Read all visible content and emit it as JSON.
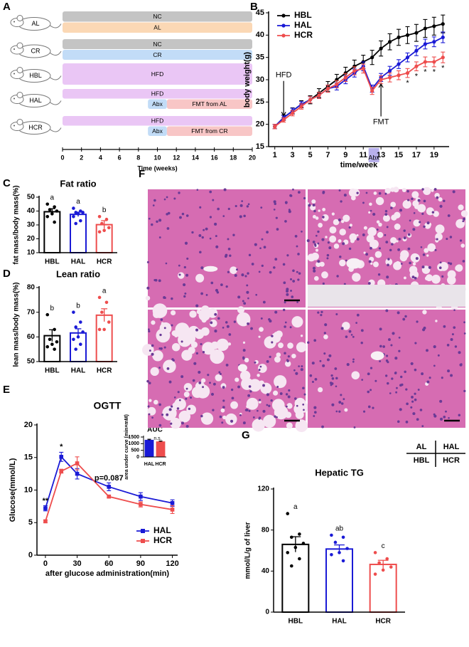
{
  "chart_data": [
    {
      "panel": "A",
      "type": "timeline",
      "xlabel": "Time (weeks)",
      "xlim": [
        0,
        20
      ],
      "xticks": [
        0,
        2,
        4,
        6,
        8,
        10,
        12,
        14,
        16,
        18,
        20
      ],
      "rows": [
        {
          "label": "AL",
          "lanes": [
            [
              {
                "label": "NC",
                "start": 0,
                "end": 20,
                "color": "#c4c4c4"
              }
            ],
            [
              {
                "label": "AL",
                "start": 0,
                "end": 20,
                "color": "#fbd8b5"
              }
            ]
          ]
        },
        {
          "label": "CR",
          "lanes": [
            [
              {
                "label": "NC",
                "start": 0,
                "end": 20,
                "color": "#c4c4c4"
              }
            ],
            [
              {
                "label": "CR",
                "start": 0,
                "end": 20,
                "color": "#c2dcf7"
              }
            ]
          ]
        },
        {
          "label": "HBL",
          "lanes": [
            [
              {
                "label": "HFD",
                "start": 0,
                "end": 20,
                "color": "#eac6f5"
              }
            ]
          ]
        },
        {
          "label": "HAL",
          "lanes": [
            [
              {
                "label": "HFD",
                "start": 0,
                "end": 20,
                "color": "#eac6f5"
              }
            ],
            [
              {
                "label": "Abx",
                "start": 9,
                "end": 11,
                "color": "#c2dcf7"
              },
              {
                "label": "FMT from AL",
                "start": 11,
                "end": 20,
                "color": "#f8c6c6"
              }
            ]
          ]
        },
        {
          "label": "HCR",
          "lanes": [
            [
              {
                "label": "HFD",
                "start": 0,
                "end": 20,
                "color": "#eac6f5"
              }
            ],
            [
              {
                "label": "Abx",
                "start": 9,
                "end": 11,
                "color": "#c2dcf7"
              },
              {
                "label": "FMT from CR",
                "start": 11,
                "end": 20,
                "color": "#f8c6c6"
              }
            ]
          ]
        }
      ]
    },
    {
      "panel": "B",
      "type": "line",
      "ylabel": "body weight(g)",
      "xlabel": "time/week",
      "marker": "circle",
      "x": [
        1,
        2,
        3,
        4,
        5,
        6,
        7,
        8,
        9,
        10,
        11,
        12,
        13,
        14,
        15,
        16,
        17,
        18,
        19,
        20
      ],
      "xlim": [
        0.3,
        20.7
      ],
      "ylim": [
        15,
        45
      ],
      "xticks": [
        1,
        3,
        5,
        7,
        9,
        11,
        13,
        15,
        17,
        19
      ],
      "yticks": [
        15,
        20,
        25,
        30,
        35,
        40,
        45
      ],
      "legend": "top-left",
      "series": [
        {
          "name": "HBL",
          "color": "#000000",
          "values": [
            19.5,
            21.5,
            23,
            24.5,
            25.5,
            27,
            28.5,
            30,
            31.5,
            33,
            34,
            35,
            37,
            38.5,
            39.5,
            40,
            40.5,
            41.5,
            42,
            42.5
          ],
          "errors": [
            0.5,
            0.6,
            0.7,
            0.8,
            0.9,
            1,
            1.1,
            1.2,
            1.3,
            1.4,
            1.5,
            1.6,
            1.7,
            1.8,
            1.8,
            1.9,
            1.9,
            2,
            2,
            2
          ]
        },
        {
          "name": "HAL",
          "color": "#1a1ad6",
          "values": [
            19.5,
            21.5,
            23,
            24.5,
            25.5,
            26.5,
            28,
            28.5,
            30,
            31.5,
            33,
            28,
            30.5,
            32,
            33.5,
            35,
            36.5,
            38,
            38.5,
            39.5
          ],
          "errors": [
            0.5,
            0.5,
            0.6,
            0.6,
            0.7,
            0.7,
            0.8,
            0.8,
            0.9,
            0.9,
            1,
            0.8,
            0.9,
            1,
            1,
            1,
            1.1,
            1.1,
            1.1,
            1.2
          ]
        },
        {
          "name": "HCR",
          "color": "#ee4d4d",
          "values": [
            19.5,
            21,
            22.5,
            24,
            25.5,
            26.5,
            28,
            29,
            30.5,
            32,
            32.5,
            27.5,
            30,
            30.5,
            31,
            31.5,
            33,
            34,
            34,
            35
          ],
          "errors": [
            0.5,
            0.5,
            0.6,
            0.6,
            0.7,
            0.7,
            0.8,
            0.8,
            0.9,
            0.9,
            1,
            0.8,
            0.9,
            1,
            1,
            1,
            1,
            1.1,
            1.1,
            1.2
          ]
        }
      ],
      "arrows": [
        {
          "text": "HFD",
          "x": 2,
          "y": 31
        },
        {
          "text": "FMT",
          "x": 13,
          "y": 20.5
        }
      ],
      "shade": {
        "label": "Abx",
        "start": 11.6,
        "end": 12.8
      },
      "significance": {
        "text": "*",
        "x": [
          16,
          17,
          18,
          19,
          20
        ]
      }
    },
    {
      "panel": "C",
      "type": "bar",
      "title": "Fat ratio",
      "ylabel": "fat mass/body mass(%)",
      "categories": [
        "HBL",
        "HAL",
        "HCR"
      ],
      "colors": [
        "#000000",
        "#1a1ad6",
        "#ee4d4d"
      ],
      "values": [
        39.5,
        37.6,
        30.2
      ],
      "errors": [
        2.2,
        1.6,
        2.9
      ],
      "letters": [
        "a",
        "a",
        "b"
      ],
      "points": [
        [
          45,
          43,
          41,
          40,
          38,
          36,
          32
        ],
        [
          42,
          40,
          39,
          39,
          38,
          36,
          33,
          31
        ],
        [
          36,
          34,
          31,
          28,
          26,
          25
        ]
      ],
      "ylim": [
        10,
        50
      ],
      "yticks": [
        10,
        20,
        30,
        40,
        50
      ]
    },
    {
      "panel": "D",
      "type": "bar",
      "title": "Lean ratio",
      "ylabel": "lean mass/body mass(%)",
      "categories": [
        "HBL",
        "HAL",
        "HCR"
      ],
      "colors": [
        "#000000",
        "#1a1ad6",
        "#ee4d4d"
      ],
      "values": [
        60.5,
        61.6,
        68.8
      ],
      "errors": [
        2.4,
        1.7,
        2.6
      ],
      "letters": [
        "b",
        "b",
        "a"
      ],
      "points": [
        [
          69,
          63,
          59,
          58,
          57,
          56,
          55
        ],
        [
          70,
          66,
          64,
          62,
          60,
          59,
          57,
          55
        ],
        [
          76,
          74,
          70,
          66,
          63,
          63
        ]
      ],
      "ylim": [
        50,
        80
      ],
      "yticks": [
        50,
        60,
        70,
        80
      ]
    },
    {
      "panel": "E",
      "type": "line",
      "title": "OGTT",
      "ylabel": "Glucose(mmol/L)",
      "xlabel": "after glucose administration(min)",
      "marker": "square",
      "x": [
        0,
        15,
        30,
        60,
        90,
        120
      ],
      "xlim": [
        -8,
        125
      ],
      "ylim": [
        0,
        20
      ],
      "xticks": [
        0,
        30,
        60,
        90,
        120
      ],
      "yticks": [
        0,
        5,
        10,
        15,
        20
      ],
      "legend": "bottom-right",
      "series": [
        {
          "name": "HAL",
          "color": "#1a1ad6",
          "values": [
            7.2,
            15.1,
            12.5,
            10.5,
            9.0,
            8.0
          ],
          "errors": [
            0.4,
            0.7,
            0.8,
            0.6,
            0.6,
            0.5
          ]
        },
        {
          "name": "HCR",
          "color": "#ee4d4d",
          "values": [
            5.2,
            12.9,
            14.1,
            9.0,
            7.8,
            7.0
          ],
          "errors": [
            0.2,
            0.3,
            1.0,
            0.2,
            0.4,
            0.6
          ]
        }
      ],
      "annotations": [
        {
          "text": "**",
          "x": 0,
          "y": 8.3
        },
        {
          "text": "*",
          "x": 15,
          "y": 16.6
        },
        {
          "text": "p=0.087",
          "x": 60,
          "y": 11.8
        }
      ]
    },
    {
      "type": "bar",
      "title": "AUC",
      "ylabel": "area under curve (min×mM)",
      "categories": [
        "HAL",
        "HCR"
      ],
      "colors": [
        "#1a1ad6",
        "#ee4d4d"
      ],
      "filled": true,
      "values": [
        1290,
        1170
      ],
      "errors": [
        40,
        25
      ],
      "note": "n.s.",
      "ylim": [
        0,
        1500
      ],
      "yticks": [
        0,
        500,
        1000,
        1500
      ]
    },
    {
      "panel": "F",
      "type": "image",
      "key": [
        [
          "AL",
          "HAL"
        ],
        [
          "HBL",
          "HCR"
        ]
      ]
    },
    {
      "panel": "G",
      "type": "bar",
      "title": "Hepatic TG",
      "ylabel": "mmol/L/g of liver",
      "categories": [
        "HBL",
        "HAL",
        "HCR"
      ],
      "colors": [
        "#000000",
        "#1a1ad6",
        "#ee4d4d"
      ],
      "values": [
        66,
        61.5,
        46.5
      ],
      "errors": [
        7.5,
        4,
        4
      ],
      "letters": [
        "a",
        "ab",
        "c"
      ],
      "points": [
        [
          96,
          76,
          73,
          67,
          63,
          58,
          52,
          45
        ],
        [
          75,
          73,
          68,
          62,
          58,
          56,
          50
        ],
        [
          58,
          52,
          48,
          44,
          41,
          37
        ]
      ],
      "ylim": [
        0,
        120
      ],
      "yticks": [
        0,
        40,
        80,
        120
      ]
    }
  ]
}
